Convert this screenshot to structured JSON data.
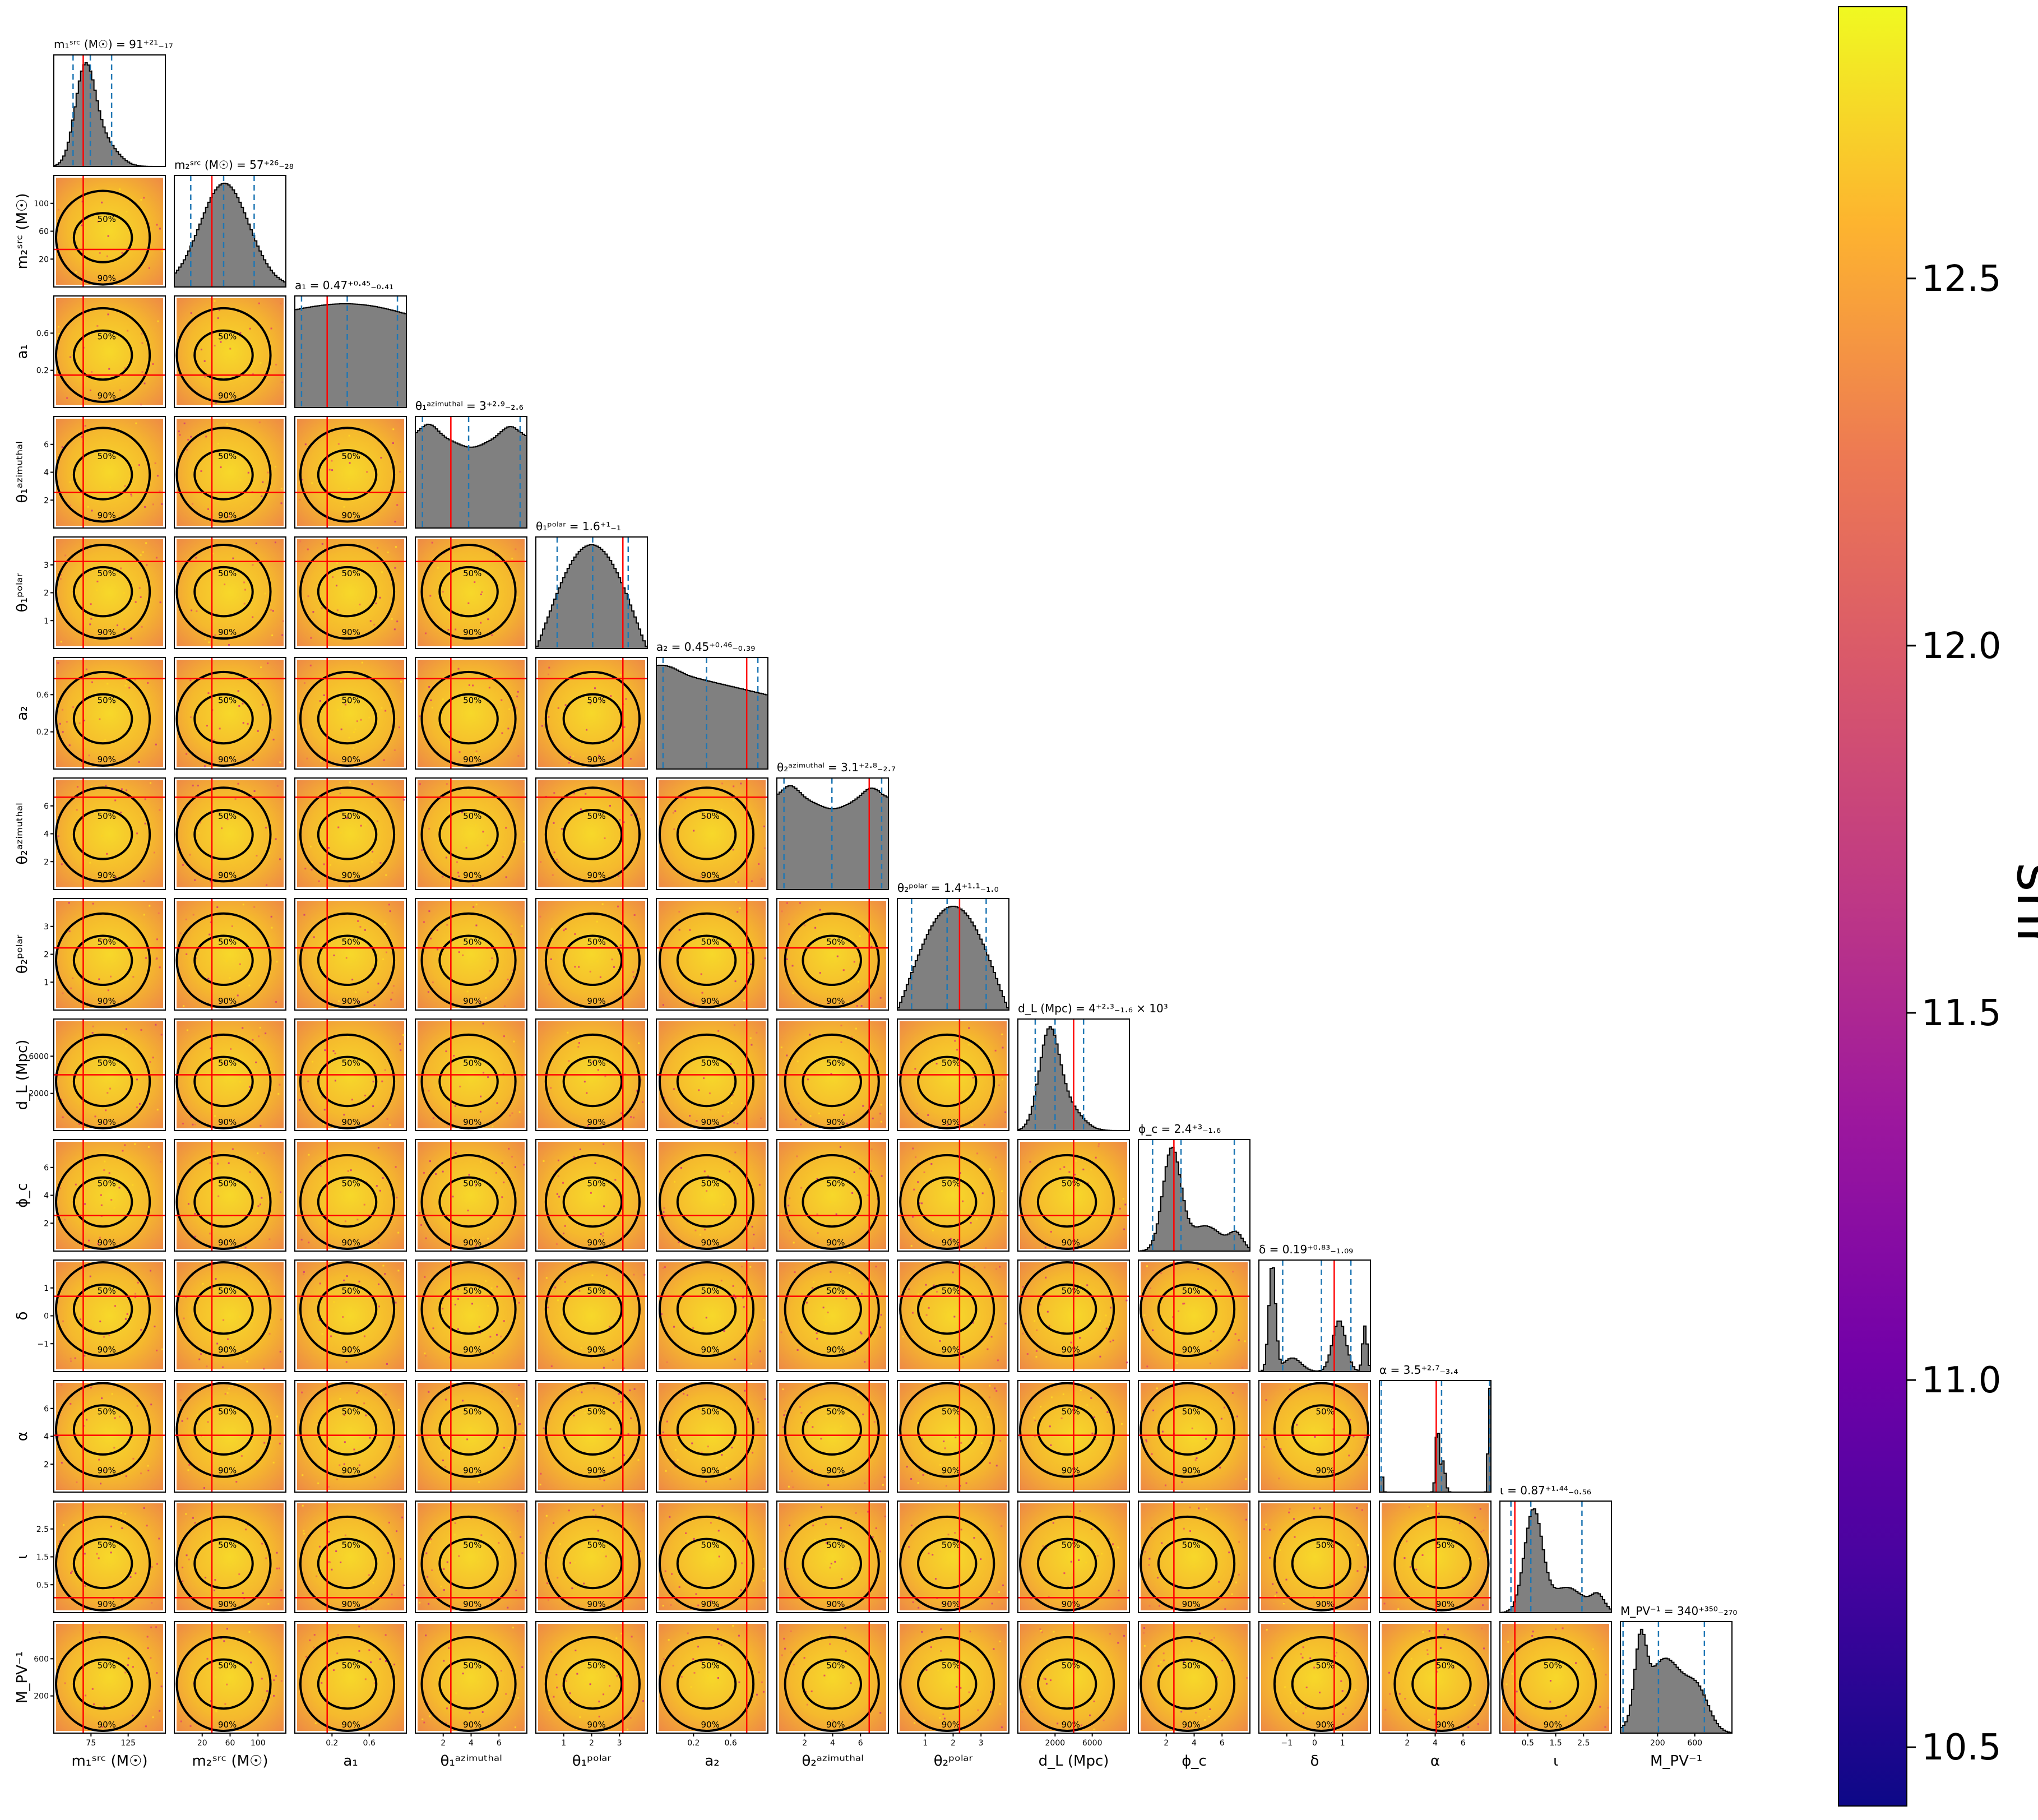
{
  "chart_data": {
    "type": "corner",
    "colorbar": {
      "label": "snr",
      "ticks": [
        "10.5",
        "11.0",
        "11.5",
        "12.0",
        "12.5"
      ],
      "range": [
        10.42,
        12.87
      ],
      "colormap": "plasma"
    },
    "colors": {
      "truth_line": "#ff0000",
      "quantile_line": "#1f77b4",
      "histogram_fill": "#808080",
      "contour": "#000000"
    },
    "contour_labels": [
      "50%",
      "90%"
    ],
    "parameters": [
      {
        "name": "m1src",
        "axis_label": "m₁ˢʳᶜ (M☉)",
        "title": "m₁ˢʳᶜ (M☉) = 91⁺²¹₋₁₇",
        "range": [
          55,
          165
        ],
        "ticks": [
          "75",
          "125"
        ],
        "median": 91,
        "lower": 74,
        "upper": 112,
        "truth": 84,
        "hist_shape": "skewed_peak"
      },
      {
        "name": "m2src",
        "axis_label": "m₂ˢʳᶜ (M☉)",
        "title": "m₂ˢʳᶜ (M☉) = 57⁺²⁶₋₂₈",
        "range": [
          15,
          110
        ],
        "ticks": [
          "20",
          "60",
          "100"
        ],
        "median": 57,
        "lower": 29,
        "upper": 83,
        "truth": 47,
        "hist_shape": "broad_peak"
      },
      {
        "name": "a1",
        "axis_label": "a₁",
        "title": "a₁ = 0.47⁺⁰·⁴⁵₋₀.₄₁",
        "range": [
          0,
          1
        ],
        "ticks": [
          "0.2",
          "0.6"
        ],
        "median": 0.47,
        "lower": 0.06,
        "upper": 0.92,
        "truth": 0.29,
        "hist_shape": "flat"
      },
      {
        "name": "theta1_azimuthal",
        "axis_label": "θ₁ᵃᶻⁱᵐᵘᵗʰᵃˡ",
        "title": "θ₁ᵃᶻⁱᵐᵘᵗʰᵃˡ = 3⁺²·⁹₋₂.₆",
        "range": [
          0,
          6.28
        ],
        "ticks": [
          "2",
          "4",
          "6"
        ],
        "median": 3.0,
        "lower": 0.4,
        "upper": 5.9,
        "truth": 2.0,
        "hist_shape": "bimodal_flat"
      },
      {
        "name": "theta1_polar",
        "axis_label": "θ₁ᵖᵒˡᵃʳ",
        "title": "θ₁ᵖᵒˡᵃʳ = 1.6⁺¹₋₁",
        "range": [
          0,
          3.14
        ],
        "ticks": [
          "1",
          "2",
          "3"
        ],
        "median": 1.6,
        "lower": 0.6,
        "upper": 2.6,
        "truth": 2.45,
        "hist_shape": "sine"
      },
      {
        "name": "a2",
        "axis_label": "a₂",
        "title": "a₂ = 0.45⁺⁰·⁴⁶₋₀.₃₉",
        "range": [
          0,
          1
        ],
        "ticks": [
          "0.2",
          "0.6"
        ],
        "median": 0.45,
        "lower": 0.06,
        "upper": 0.91,
        "truth": 0.81,
        "hist_shape": "declining"
      },
      {
        "name": "theta2_azimuthal",
        "axis_label": "θ₂ᵃᶻⁱᵐᵘᵗʰᵃˡ",
        "title": "θ₂ᵃᶻⁱᵐᵘᵗʰᵃˡ = 3.1⁺²·⁸₋₂.₇",
        "range": [
          0,
          6.28
        ],
        "ticks": [
          "2",
          "4",
          "6"
        ],
        "median": 3.1,
        "lower": 0.4,
        "upper": 5.9,
        "truth": 5.2,
        "hist_shape": "bimodal_flat"
      },
      {
        "name": "theta2_polar",
        "axis_label": "θ₂ᵖᵒˡᵃʳ",
        "title": "θ₂ᵖᵒˡᵃʳ = 1.4⁺¹·¹₋₁.₀",
        "range": [
          0,
          3.14
        ],
        "ticks": [
          "1",
          "2",
          "3"
        ],
        "median": 1.4,
        "lower": 0.4,
        "upper": 2.5,
        "truth": 1.75,
        "hist_shape": "sine"
      },
      {
        "name": "dL",
        "axis_label": "d_L (Mpc)",
        "title": "d_L (Mpc) = 4⁺²·³₋₁.₆ × 10³",
        "range": [
          1000,
          10000
        ],
        "ticks": [
          "2000",
          "6000"
        ],
        "median": 4000,
        "lower": 2400,
        "upper": 6300,
        "truth": 5500,
        "hist_shape": "skewed_peak"
      },
      {
        "name": "phic",
        "axis_label": "ϕ_c",
        "title": "ϕ_c = 2.4⁺³₋₁.₆",
        "range": [
          0,
          6.28
        ],
        "ticks": [
          "2",
          "4",
          "6"
        ],
        "median": 2.4,
        "lower": 0.8,
        "upper": 5.4,
        "truth": 2.0,
        "hist_shape": "peak_with_tail"
      },
      {
        "name": "delta",
        "axis_label": "δ",
        "title": "δ = 0.19⁺⁰·⁸³₋₁.₀₉",
        "range": [
          -1.57,
          1.57
        ],
        "ticks": [
          "−1",
          "0",
          "1"
        ],
        "median": 0.19,
        "lower": -0.9,
        "upper": 1.02,
        "truth": 0.55,
        "hist_shape": "bimodal_sharp"
      },
      {
        "name": "alpha",
        "axis_label": "α",
        "title": "α = 3.5⁺²·⁷₋₃.₄",
        "range": [
          0,
          6.28
        ],
        "ticks": [
          "2",
          "4",
          "6"
        ],
        "median": 3.5,
        "lower": 0.1,
        "upper": 6.2,
        "truth": 3.2,
        "hist_shape": "spiky"
      },
      {
        "name": "iota",
        "axis_label": "ι",
        "title": "ι = 0.87⁺¹·⁴⁴₋₀.₅₆",
        "range": [
          0,
          3.14
        ],
        "ticks": [
          "0.5",
          "1.5",
          "2.5"
        ],
        "median": 0.87,
        "lower": 0.31,
        "upper": 2.31,
        "truth": 0.42,
        "hist_shape": "peak_with_tail"
      },
      {
        "name": "MPV_inv",
        "axis_label": "M_PV⁻¹",
        "title": "M_PV⁻¹ = 340⁺³⁵⁰₋₂₇₀",
        "range": [
          50,
          900
        ],
        "ticks": [
          "200",
          "600"
        ],
        "median": 340,
        "lower": 70,
        "upper": 690,
        "truth": null,
        "hist_shape": "broad_flat"
      }
    ]
  }
}
